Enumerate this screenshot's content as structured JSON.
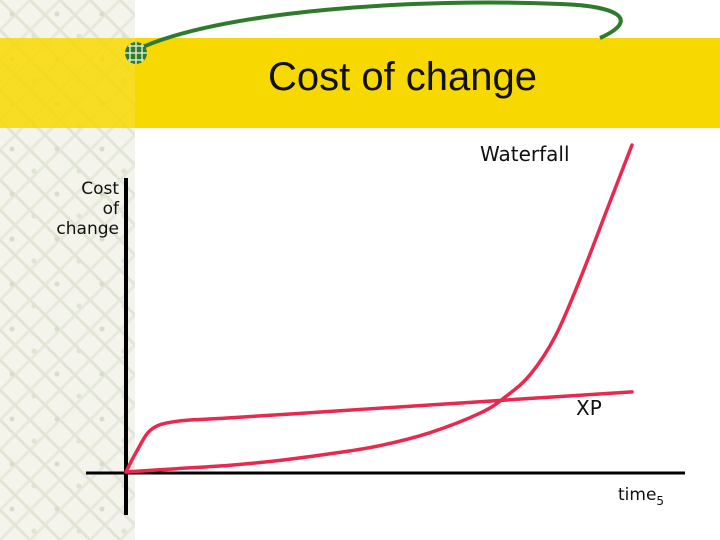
{
  "slide": {
    "title": "Cost of change",
    "page_number": "5",
    "colors": {
      "band": "#f7d800",
      "swoosh": "#2f7a2c",
      "curves": "#e8284f",
      "axes": "#000000"
    },
    "logo_icon": "globe-grid-icon"
  },
  "chart_data": {
    "type": "line",
    "ylabel": "Cost of change",
    "ylabel_lines": [
      "Cost",
      "of",
      "change"
    ],
    "xlabel": "time",
    "series": [
      {
        "name": "Waterfall",
        "x": [
          0,
          0.1,
          0.2,
          0.3,
          0.4,
          0.5,
          0.6,
          0.7,
          0.75,
          0.8,
          0.85,
          0.9,
          0.95,
          1.0
        ],
        "y": [
          0,
          0.01,
          0.02,
          0.035,
          0.055,
          0.08,
          0.12,
          0.18,
          0.23,
          0.3,
          0.42,
          0.6,
          0.8,
          1.0
        ]
      },
      {
        "name": "XP",
        "x": [
          0,
          0.02,
          0.05,
          0.1,
          0.2,
          0.4,
          0.6,
          0.8,
          1.0
        ],
        "y": [
          0,
          0.06,
          0.13,
          0.155,
          0.165,
          0.185,
          0.205,
          0.225,
          0.245
        ]
      }
    ]
  }
}
